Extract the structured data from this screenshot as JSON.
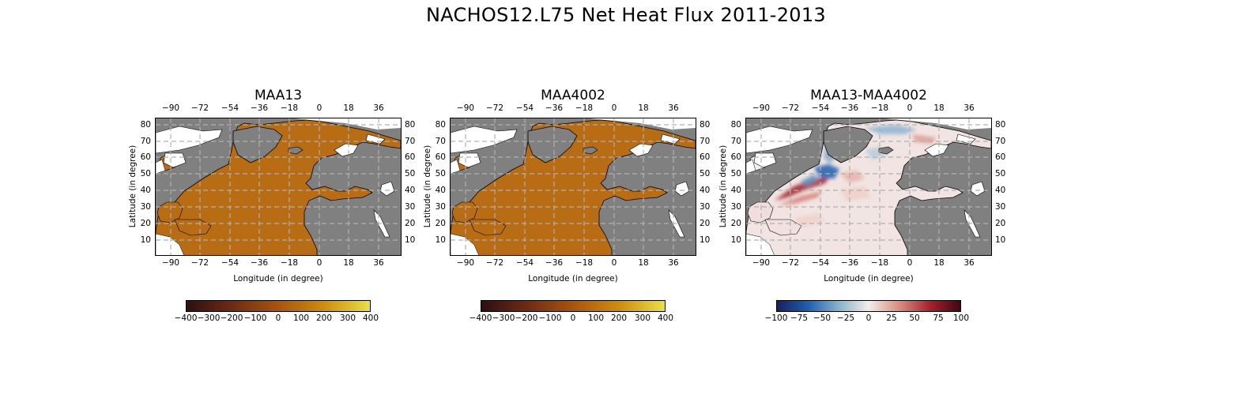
{
  "figure": {
    "title": "NACHOS12.L75 Net Heat Flux 2011-2013"
  },
  "axes_common": {
    "xlabel": "Longitude (in degree)",
    "ylabel": "Latitude (in degree)",
    "lon_ticks": [
      "−90",
      "−72",
      "−54",
      "−36",
      "−18",
      "0",
      "18",
      "36"
    ],
    "lat_ticks": [
      "80",
      "70",
      "60",
      "50",
      "40",
      "30",
      "20",
      "10"
    ],
    "projection": "cylindrical",
    "lon_range": [
      -100,
      52
    ],
    "lat_range": [
      1,
      84
    ],
    "grid": true
  },
  "panels": [
    {
      "title": "MAA13",
      "field": "net heat flux",
      "colorbar": {
        "range": [
          -400,
          400
        ],
        "ticks": [
          "−400",
          "−300",
          "−200",
          "−100",
          "0",
          "100",
          "200",
          "300",
          "400"
        ],
        "colors": [
          "#2e0f10",
          "#6e2b14",
          "#a9540f",
          "#cf8c0f",
          "#e8e044"
        ]
      }
    },
    {
      "title": "MAA4002",
      "field": "net heat flux",
      "colorbar": {
        "range": [
          -400,
          400
        ],
        "ticks": [
          "−400",
          "−300",
          "−200",
          "−100",
          "0",
          "100",
          "200",
          "300",
          "400"
        ],
        "colors": [
          "#2e0f10",
          "#6e2b14",
          "#a9540f",
          "#cf8c0f",
          "#e8e044"
        ]
      }
    },
    {
      "title": "MAA13-MAA4002",
      "field": "difference",
      "colorbar": {
        "range": [
          -100,
          100
        ],
        "ticks": [
          "−100",
          "−75",
          "−50",
          "−25",
          "0",
          "25",
          "50",
          "75",
          "100"
        ],
        "colors": [
          "#1a1f5e",
          "#1e5fb0",
          "#8fb9cc",
          "#f2ecea",
          "#d99282",
          "#a3202a",
          "#3e0614"
        ]
      }
    }
  ],
  "colors": {
    "land": "#808080",
    "ocean_flux": "#b86c14",
    "ice_no_data": "#ffffff",
    "grid": "#b0b0b0"
  }
}
